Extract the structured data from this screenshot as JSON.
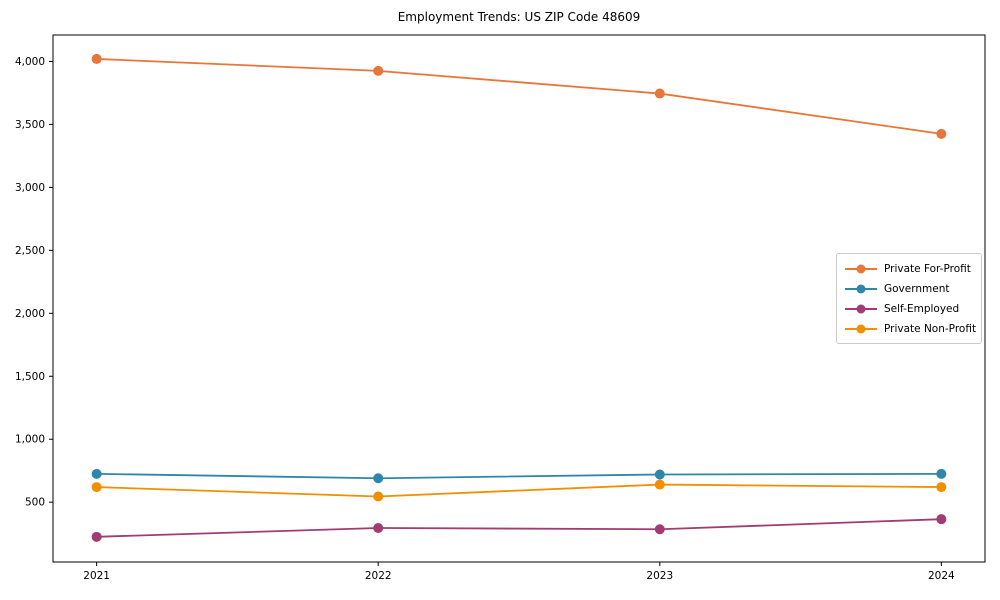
{
  "chart_data": {
    "type": "line",
    "title": "Employment Trends: US ZIP Code 48609",
    "x": [
      2021,
      2022,
      2023,
      2024
    ],
    "x_tick_labels": [
      "2021",
      "2022",
      "2023",
      "2024"
    ],
    "series": [
      {
        "name": "Private For-Profit",
        "color": "#e8763b",
        "values": [
          4020,
          3925,
          3745,
          3425
        ]
      },
      {
        "name": "Government",
        "color": "#2e86ab",
        "values": [
          725,
          690,
          720,
          725
        ]
      },
      {
        "name": "Self-Employed",
        "color": "#a23b72",
        "values": [
          225,
          295,
          285,
          365
        ]
      },
      {
        "name": "Private Non-Profit",
        "color": "#f18f01",
        "values": [
          620,
          545,
          640,
          620
        ]
      }
    ],
    "y_ticks": [
      500,
      1000,
      1500,
      2000,
      2500,
      3000,
      3500,
      4000
    ],
    "y_tick_labels": [
      "500",
      "1,000",
      "1,500",
      "2,000",
      "2,500",
      "3,000",
      "3,500",
      "4,000"
    ],
    "xlim": [
      2020.845,
      2024.155
    ],
    "ylim": [
      25,
      4210
    ],
    "xlabel": "",
    "ylabel": "",
    "grid": false,
    "legend_position": "center right",
    "marker": "circle",
    "frame_color": "#000000"
  }
}
